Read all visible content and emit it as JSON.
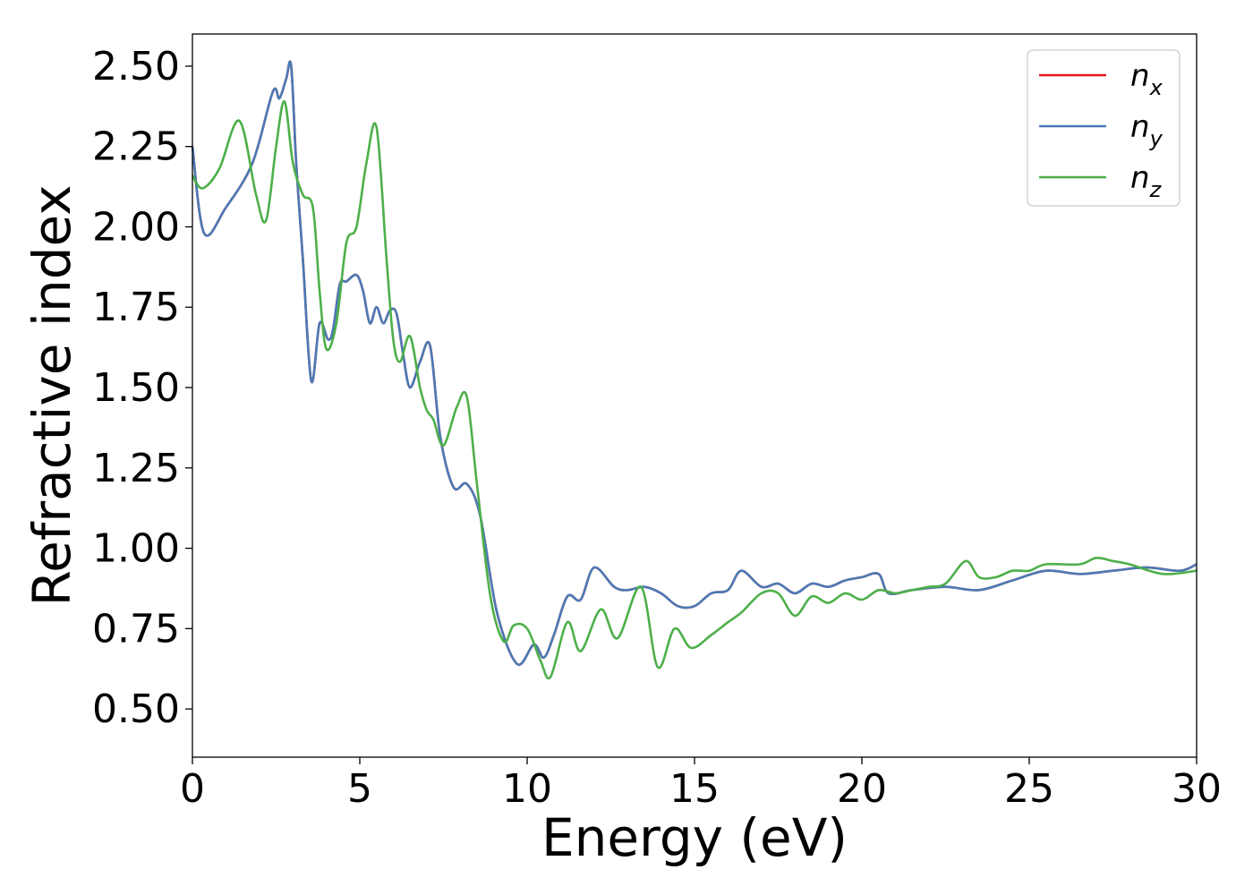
{
  "chart_data": {
    "type": "line",
    "xlabel": "Energy (eV)",
    "ylabel": "Refractive index",
    "xlim": [
      0,
      30
    ],
    "ylim": [
      0.35,
      2.6
    ],
    "xticks": [
      0,
      5,
      10,
      15,
      20,
      25,
      30
    ],
    "yticks": [
      0.5,
      0.75,
      1.0,
      1.25,
      1.5,
      1.75,
      2.0,
      2.25,
      2.5
    ],
    "grid": false,
    "legend_position": "top-right",
    "colors": {
      "n_x": "#e41a1c",
      "n_y": "#4a7ab5",
      "n_z": "#4daf4a"
    },
    "series": [
      {
        "name": "n_x",
        "label_base": "n",
        "label_sub": "x",
        "color": "#e41a1c",
        "x": [
          0,
          0.35,
          1,
          1.8,
          2.4,
          2.6,
          2.8,
          2.95,
          3.1,
          3.3,
          3.55,
          3.8,
          4.05,
          4.2,
          4.4,
          4.6,
          4.9,
          5.1,
          5.3,
          5.5,
          5.7,
          5.9,
          6.1,
          6.3,
          6.5,
          6.8,
          7.1,
          7.4,
          7.8,
          8.2,
          8.6,
          9.1,
          9.7,
          10.2,
          10.5,
          10.8,
          11.2,
          11.6,
          12,
          12.6,
          13,
          13.5,
          14,
          14.5,
          15,
          15.5,
          16,
          16.4,
          17,
          17.5,
          18,
          18.5,
          19,
          19.5,
          20,
          20.5,
          20.8,
          21.5,
          22.5,
          23.5,
          24.5,
          25.5,
          26.5,
          27.5,
          28.5,
          29.5,
          30
        ],
        "values": [
          2.25,
          1.98,
          2.06,
          2.2,
          2.42,
          2.4,
          2.46,
          2.5,
          2.2,
          1.9,
          1.52,
          1.7,
          1.65,
          1.68,
          1.82,
          1.83,
          1.85,
          1.8,
          1.7,
          1.75,
          1.7,
          1.74,
          1.73,
          1.6,
          1.5,
          1.58,
          1.63,
          1.35,
          1.19,
          1.2,
          1.1,
          0.8,
          0.64,
          0.7,
          0.66,
          0.73,
          0.85,
          0.84,
          0.94,
          0.88,
          0.87,
          0.88,
          0.86,
          0.82,
          0.82,
          0.86,
          0.87,
          0.93,
          0.88,
          0.89,
          0.86,
          0.89,
          0.88,
          0.9,
          0.91,
          0.92,
          0.86,
          0.87,
          0.88,
          0.87,
          0.9,
          0.93,
          0.92,
          0.93,
          0.94,
          0.93,
          0.95
        ]
      },
      {
        "name": "n_y",
        "label_base": "n",
        "label_sub": "y",
        "color": "#4a7ab5",
        "x": [
          0,
          0.35,
          1,
          1.8,
          2.4,
          2.6,
          2.8,
          2.95,
          3.1,
          3.3,
          3.55,
          3.8,
          4.05,
          4.2,
          4.4,
          4.6,
          4.9,
          5.1,
          5.3,
          5.5,
          5.7,
          5.9,
          6.1,
          6.3,
          6.5,
          6.8,
          7.1,
          7.4,
          7.8,
          8.2,
          8.6,
          9.1,
          9.7,
          10.2,
          10.5,
          10.8,
          11.2,
          11.6,
          12,
          12.6,
          13,
          13.5,
          14,
          14.5,
          15,
          15.5,
          16,
          16.4,
          17,
          17.5,
          18,
          18.5,
          19,
          19.5,
          20,
          20.5,
          20.8,
          21.5,
          22.5,
          23.5,
          24.5,
          25.5,
          26.5,
          27.5,
          28.5,
          29.5,
          30
        ],
        "values": [
          2.25,
          1.98,
          2.06,
          2.2,
          2.42,
          2.4,
          2.46,
          2.5,
          2.2,
          1.9,
          1.52,
          1.7,
          1.65,
          1.68,
          1.82,
          1.83,
          1.85,
          1.8,
          1.7,
          1.75,
          1.7,
          1.74,
          1.73,
          1.6,
          1.5,
          1.58,
          1.63,
          1.35,
          1.19,
          1.2,
          1.1,
          0.8,
          0.64,
          0.7,
          0.66,
          0.73,
          0.85,
          0.84,
          0.94,
          0.88,
          0.87,
          0.88,
          0.86,
          0.82,
          0.82,
          0.86,
          0.87,
          0.93,
          0.88,
          0.89,
          0.86,
          0.89,
          0.88,
          0.9,
          0.91,
          0.92,
          0.86,
          0.87,
          0.88,
          0.87,
          0.9,
          0.93,
          0.92,
          0.93,
          0.94,
          0.93,
          0.95
        ]
      },
      {
        "name": "n_z",
        "label_base": "n",
        "label_sub": "z",
        "color": "#4daf4a",
        "x": [
          0,
          0.3,
          0.8,
          1.4,
          1.9,
          2.2,
          2.5,
          2.75,
          3,
          3.3,
          3.6,
          3.8,
          4,
          4.3,
          4.6,
          4.9,
          5.2,
          5.5,
          5.8,
          6,
          6.2,
          6.5,
          6.8,
          7,
          7.2,
          7.5,
          7.9,
          8.2,
          8.5,
          8.9,
          9.3,
          9.6,
          10,
          10.4,
          10.7,
          11.2,
          11.6,
          12.2,
          12.7,
          13.4,
          13.9,
          14.4,
          14.9,
          15.5,
          16,
          16.4,
          17,
          17.5,
          18,
          18.5,
          19,
          19.5,
          20,
          20.5,
          21,
          21.5,
          22,
          22.5,
          23.1,
          23.5,
          24,
          24.5,
          25,
          25.5,
          26.5,
          27,
          27.5,
          28,
          29,
          30
        ],
        "values": [
          2.16,
          2.12,
          2.18,
          2.33,
          2.1,
          2.02,
          2.25,
          2.39,
          2.2,
          2.1,
          2.06,
          1.8,
          1.62,
          1.7,
          1.95,
          2.0,
          2.2,
          2.31,
          1.9,
          1.65,
          1.58,
          1.66,
          1.5,
          1.43,
          1.4,
          1.32,
          1.44,
          1.47,
          1.2,
          0.85,
          0.71,
          0.76,
          0.75,
          0.65,
          0.6,
          0.77,
          0.68,
          0.81,
          0.72,
          0.88,
          0.63,
          0.75,
          0.69,
          0.73,
          0.77,
          0.8,
          0.86,
          0.86,
          0.79,
          0.85,
          0.83,
          0.86,
          0.84,
          0.87,
          0.86,
          0.87,
          0.88,
          0.89,
          0.96,
          0.91,
          0.91,
          0.93,
          0.93,
          0.95,
          0.95,
          0.97,
          0.96,
          0.95,
          0.92,
          0.93
        ]
      }
    ]
  }
}
